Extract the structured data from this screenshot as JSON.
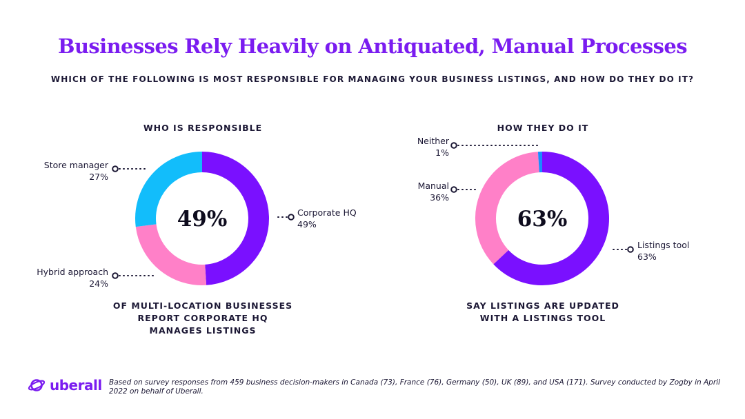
{
  "header": {
    "title": "Businesses Rely Heavily on Antiquated, Manual Processes",
    "subtitle": "WHICH OF THE FOLLOWING IS MOST RESPONSIBLE FOR MANAGING YOUR BUSINESS LISTINGS, AND HOW DO THEY DO IT?"
  },
  "colors": {
    "purple": "#7a10ff",
    "cyan": "#12bdfb",
    "pink": "#ff80c8",
    "blue": "#1a8cff"
  },
  "chart_data": [
    {
      "type": "pie",
      "variant": "donut",
      "title": "WHO IS RESPONSIBLE",
      "center_label": "49%",
      "caption": [
        "OF MULTI-LOCATION BUSINESSES",
        "REPORT CORPORATE HQ",
        "MANAGES LISTINGS"
      ],
      "slices": [
        {
          "name": "Corporate HQ",
          "value": 49,
          "label": "49%",
          "color": "#7a10ff"
        },
        {
          "name": "Hybrid approach",
          "value": 24,
          "label": "24%",
          "color": "#ff80c8"
        },
        {
          "name": "Store manager",
          "value": 27,
          "label": "27%",
          "color": "#12bdfb"
        }
      ]
    },
    {
      "type": "pie",
      "variant": "donut",
      "title": "HOW THEY DO IT",
      "center_label": "63%",
      "caption": [
        "SAY LISTINGS ARE UPDATED",
        "WITH A LISTINGS TOOL"
      ],
      "slices": [
        {
          "name": "Listings tool",
          "value": 63,
          "label": "63%",
          "color": "#7a10ff"
        },
        {
          "name": "Manual",
          "value": 36,
          "label": "36%",
          "color": "#ff80c8"
        },
        {
          "name": "Neither",
          "value": 1,
          "label": "1%",
          "color": "#1a8cff"
        }
      ]
    }
  ],
  "footer": {
    "brand": "uberall",
    "note": "Based on survey responses from 459 business decision-makers in Canada (73), France (76), Germany (50), UK (89), and USA (171). Survey conducted by Zogby in April 2022 on behalf of Uberall."
  }
}
